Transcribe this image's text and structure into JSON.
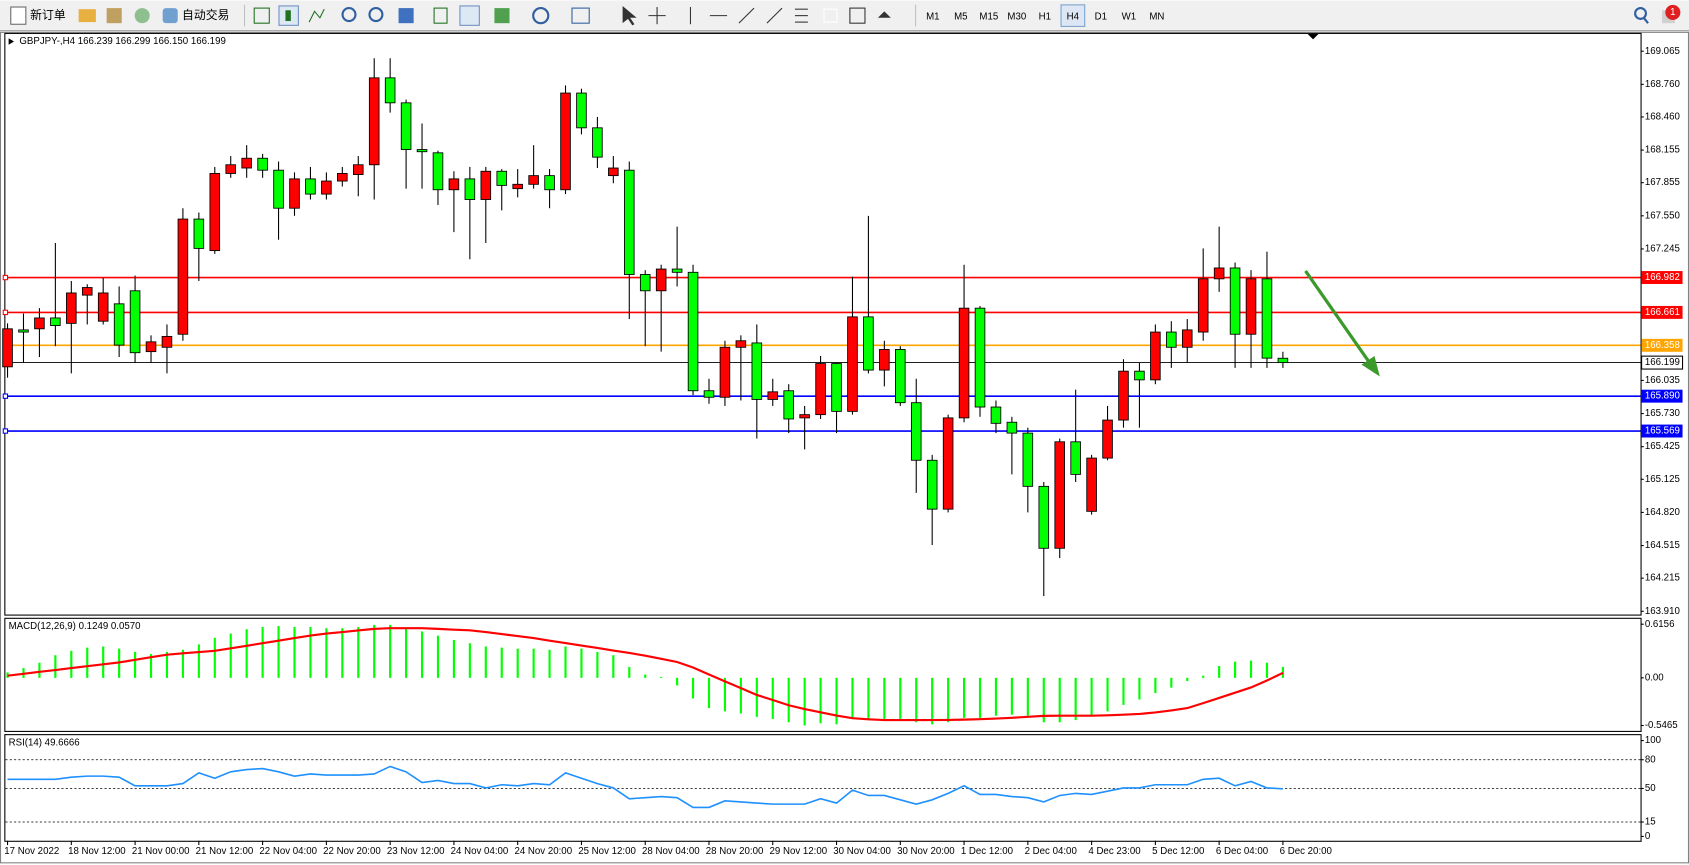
{
  "toolbar": {
    "new_order": "新订单",
    "auto_trading": "自动交易",
    "timeframes": [
      "M1",
      "M5",
      "M15",
      "M30",
      "H1",
      "H4",
      "D1",
      "W1",
      "MN"
    ],
    "active_timeframe": "H4",
    "notifications": 1
  },
  "chart_data": [
    {
      "type": "candlestick",
      "title": "GBPJPY-,H4  166.239 166.299 166.150 166.199",
      "x": [
        "17 Nov 2022",
        null,
        null,
        null,
        "18 Nov 12:00",
        null,
        null,
        null,
        "21 Nov 00:00",
        null,
        null,
        null,
        "21 Nov 12:00",
        null,
        null,
        null,
        "22 Nov 04:00",
        null,
        null,
        null,
        "22 Nov 20:00",
        null,
        null,
        null,
        "23 Nov 12:00",
        null,
        null,
        null,
        "24 Nov 04:00",
        null,
        null,
        null,
        "24 Nov 20:00",
        null,
        null,
        null,
        "25 Nov 12:00",
        null,
        null,
        null,
        "28 Nov 04:00",
        null,
        null,
        null,
        "28 Nov 20:00",
        null,
        null,
        null,
        "29 Nov 12:00",
        null,
        null,
        null,
        "30 Nov 04:00",
        null,
        null,
        null,
        "30 Nov 20:00",
        null,
        null,
        null,
        "1 Dec 12:00",
        null,
        null,
        null,
        "2 Dec 04:00",
        null,
        null,
        null,
        "4 Dec 23:00",
        null,
        null,
        null,
        "5 Dec 12:00",
        null,
        null,
        null,
        "6 Dec 04:00",
        null,
        null,
        null,
        "6 Dec 20:00"
      ],
      "open": [
        166.16,
        166.5,
        166.51,
        166.61,
        166.56,
        166.82,
        166.58,
        166.74,
        166.86,
        166.3,
        166.34,
        166.46,
        167.52,
        167.23,
        167.94,
        167.99,
        168.08,
        167.97,
        167.62,
        167.89,
        167.75,
        167.87,
        167.93,
        168.02,
        168.82,
        168.59,
        168.16,
        168.13,
        167.79,
        167.89,
        167.7,
        167.96,
        167.8,
        167.84,
        167.92,
        167.79,
        168.68,
        168.36,
        167.92,
        167.97,
        167.01,
        166.86,
        167.06,
        167.03,
        165.94,
        165.88,
        166.34,
        166.38,
        165.86,
        165.94,
        165.69,
        165.72,
        166.19,
        165.75,
        166.62,
        166.13,
        166.32,
        165.83,
        165.3,
        164.85,
        165.69,
        166.7,
        165.79,
        165.65,
        165.55,
        165.06,
        164.49,
        165.47,
        164.83,
        165.32,
        165.67,
        166.12,
        166.04,
        166.48,
        166.34,
        166.48,
        166.97,
        167.07,
        166.46,
        166.97,
        166.239
      ],
      "high": [
        166.56,
        166.65,
        166.7,
        167.3,
        166.95,
        166.92,
        166.98,
        166.9,
        167.0,
        166.45,
        166.55,
        167.62,
        167.58,
        168.0,
        168.1,
        168.2,
        168.12,
        168.05,
        167.95,
        168.0,
        167.95,
        168.0,
        168.1,
        169.0,
        169.0,
        168.62,
        168.4,
        168.15,
        167.96,
        168.0,
        168.0,
        167.98,
        167.98,
        168.2,
        167.98,
        168.75,
        168.72,
        168.46,
        168.1,
        168.05,
        167.05,
        167.1,
        167.45,
        167.1,
        166.05,
        166.4,
        166.45,
        166.55,
        166.05,
        166.0,
        165.8,
        166.26,
        166.2,
        166.99,
        167.55,
        166.4,
        166.35,
        166.05,
        165.35,
        165.72,
        167.1,
        166.72,
        165.85,
        165.7,
        165.6,
        165.1,
        165.5,
        165.95,
        165.35,
        165.8,
        166.23,
        166.2,
        166.55,
        166.58,
        166.6,
        167.25,
        167.45,
        167.12,
        167.05,
        167.22,
        166.299
      ],
      "low": [
        166.06,
        166.2,
        166.25,
        166.35,
        166.1,
        166.55,
        166.55,
        166.25,
        166.2,
        166.2,
        166.1,
        166.4,
        166.95,
        167.2,
        167.9,
        167.9,
        167.9,
        167.33,
        167.55,
        167.7,
        167.7,
        167.82,
        167.73,
        167.7,
        168.5,
        167.8,
        167.8,
        167.65,
        167.4,
        167.15,
        167.3,
        167.6,
        167.72,
        167.8,
        167.62,
        167.75,
        168.3,
        167.99,
        167.85,
        166.6,
        166.35,
        166.3,
        166.9,
        165.9,
        165.82,
        165.8,
        165.85,
        165.5,
        165.8,
        165.55,
        165.4,
        165.68,
        165.55,
        165.72,
        166.1,
        165.98,
        165.8,
        165.0,
        164.52,
        164.82,
        165.65,
        165.7,
        165.55,
        165.17,
        164.82,
        164.05,
        164.4,
        165.1,
        164.8,
        165.3,
        165.6,
        165.6,
        166.0,
        166.15,
        166.2,
        166.4,
        166.85,
        166.15,
        166.15,
        166.15,
        166.15
      ],
      "close": [
        166.51,
        166.48,
        166.61,
        166.54,
        166.84,
        166.89,
        166.84,
        166.36,
        166.29,
        166.39,
        166.44,
        167.52,
        167.25,
        167.94,
        168.02,
        168.08,
        167.97,
        167.62,
        167.89,
        167.75,
        167.87,
        167.94,
        168.02,
        168.82,
        168.59,
        168.16,
        168.14,
        167.79,
        167.89,
        167.7,
        167.96,
        167.83,
        167.84,
        167.92,
        167.79,
        168.68,
        168.36,
        168.09,
        167.99,
        167.01,
        166.86,
        167.06,
        167.03,
        165.94,
        165.88,
        166.34,
        166.4,
        165.86,
        165.93,
        165.68,
        165.72,
        166.19,
        165.75,
        166.62,
        166.13,
        166.32,
        165.83,
        165.3,
        164.85,
        165.69,
        166.7,
        165.79,
        165.64,
        165.55,
        165.06,
        164.49,
        165.47,
        165.17,
        165.32,
        165.67,
        166.12,
        166.04,
        166.48,
        166.34,
        166.5,
        166.97,
        167.07,
        166.46,
        166.97,
        166.24,
        166.199
      ],
      "up_color": "#ff0000",
      "down_color": "#00ff00",
      "ylim": [
        163.88,
        169.224
      ],
      "yticks": [
        169.065,
        {
          "value": 168.76,
          "label": "168.760"
        },
        {
          "value": 168.46,
          "label": "168.460"
        },
        168.155,
        167.855,
        {
          "value": 167.55,
          "label": "167.550"
        },
        167.245,
        166.035,
        {
          "value": 165.73,
          "label": "165.730"
        },
        165.425,
        165.125,
        {
          "value": 164.82,
          "label": "164.820"
        },
        164.515,
        164.215,
        {
          "value": 163.91,
          "label": "163.910"
        }
      ],
      "levels": [
        {
          "value": 166.982,
          "color": "#ff0000"
        },
        {
          "value": 166.661,
          "color": "#ff0000"
        },
        {
          "value": 166.358,
          "color": "#ffa500"
        },
        {
          "value": 165.89,
          "label": "165.890",
          "color": "#0000ff"
        },
        {
          "value": 165.569,
          "color": "#0000ff"
        }
      ]
    },
    {
      "type": "macd",
      "title": "MACD(12,26,9) 0.1249 0.0570",
      "series": [
        {
          "style": "bar",
          "color": "#00ff00",
          "values": [
            0.062,
            0.112,
            0.174,
            0.26,
            0.31,
            0.347,
            0.36,
            0.335,
            0.298,
            0.273,
            0.298,
            0.322,
            0.384,
            0.459,
            0.508,
            0.558,
            0.583,
            0.595,
            0.583,
            0.583,
            0.57,
            0.57,
            0.583,
            0.608,
            0.608,
            0.57,
            0.533,
            0.484,
            0.434,
            0.397,
            0.36,
            0.347,
            0.335,
            0.335,
            0.322,
            0.36,
            0.335,
            0.298,
            0.26,
            0.124,
            0.037,
            0.012,
            -0.087,
            -0.236,
            -0.347,
            -0.384,
            -0.409,
            -0.447,
            -0.471,
            -0.509,
            -0.546,
            -0.521,
            -0.533,
            -0.471,
            -0.484,
            -0.471,
            -0.471,
            -0.509,
            -0.533,
            -0.509,
            -0.459,
            -0.459,
            -0.434,
            -0.422,
            -0.434,
            -0.509,
            -0.509,
            -0.484,
            -0.434,
            -0.384,
            -0.31,
            -0.248,
            -0.174,
            -0.112,
            -0.037,
            0.025,
            0.136,
            0.186,
            0.198,
            0.174,
            0.1249
          ]
        },
        {
          "style": "line",
          "color": "#ff0000",
          "values": [
            0.025,
            0.047,
            0.069,
            0.09,
            0.112,
            0.134,
            0.155,
            0.177,
            0.207,
            0.237,
            0.266,
            0.282,
            0.296,
            0.31,
            0.339,
            0.368,
            0.398,
            0.427,
            0.456,
            0.485,
            0.508,
            0.526,
            0.544,
            0.562,
            0.57,
            0.57,
            0.57,
            0.562,
            0.553,
            0.545,
            0.525,
            0.502,
            0.479,
            0.456,
            0.427,
            0.399,
            0.371,
            0.344,
            0.313,
            0.286,
            0.255,
            0.218,
            0.182,
            0.119,
            0.039,
            -0.04,
            -0.118,
            -0.196,
            -0.254,
            -0.314,
            -0.358,
            -0.395,
            -0.432,
            -0.462,
            -0.475,
            -0.484,
            -0.484,
            -0.484,
            -0.484,
            -0.482,
            -0.479,
            -0.474,
            -0.467,
            -0.458,
            -0.447,
            -0.436,
            -0.434,
            -0.434,
            -0.434,
            -0.43,
            -0.422,
            -0.414,
            -0.397,
            -0.374,
            -0.347,
            -0.29,
            -0.23,
            -0.17,
            -0.11,
            -0.03,
            0.057
          ]
        }
      ],
      "ylim": [
        -0.608,
        0.677
      ],
      "yticks": [
        0.6156,
        {
          "value": 0,
          "label": "0.00"
        },
        -0.5465
      ]
    },
    {
      "type": "line",
      "title": "RSI(14) 49.6666",
      "color": "#1e90ff",
      "values": [
        59.6,
        59.6,
        59.6,
        59.6,
        61.8,
        62.9,
        62.9,
        61.8,
        52.8,
        52.8,
        52.8,
        55.1,
        66.3,
        60.7,
        67.4,
        69.7,
        70.8,
        67.4,
        62.9,
        65.2,
        64.0,
        64.0,
        64.0,
        65.2,
        73.0,
        67.4,
        56.2,
        58.4,
        55.1,
        55.1,
        50.6,
        53.9,
        52.8,
        55.1,
        53.9,
        66.3,
        60.7,
        55.1,
        50.6,
        39.3,
        40.4,
        41.6,
        40.4,
        30.3,
        30.3,
        37.1,
        36.0,
        34.8,
        33.7,
        33.7,
        33.7,
        39.3,
        34.8,
        48.3,
        42.7,
        42.7,
        38.2,
        33.7,
        38.2,
        44.9,
        52.8,
        43.8,
        43.8,
        41.6,
        40.4,
        36.0,
        42.7,
        44.9,
        43.8,
        47.2,
        50.6,
        50.6,
        53.9,
        53.9,
        53.9,
        59.6,
        60.7,
        52.8,
        57.3,
        50.6,
        49.6666
      ],
      "ylim": [
        -4.5,
        105.6
      ],
      "yticks": [
        100,
        80,
        50,
        15,
        0
      ],
      "levels": [
        80,
        50,
        15
      ]
    }
  ]
}
